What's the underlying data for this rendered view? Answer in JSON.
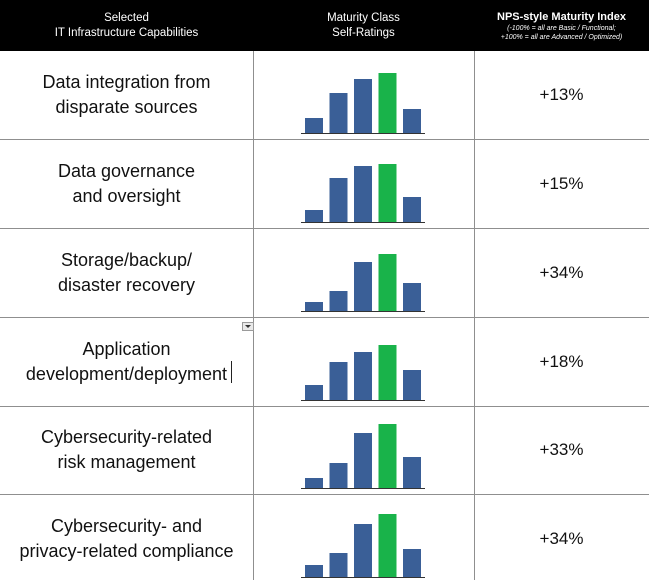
{
  "header": {
    "col1": [
      "Selected",
      "IT Infrastructure Capabilities"
    ],
    "col2": [
      "Maturity Class",
      "Self-Ratings"
    ],
    "col3_title": "NPS-style Maturity Index",
    "col3_notes": [
      "(-100% = all are Basic / Functional;",
      "+100% = all are Advanced / Optimized)"
    ]
  },
  "colors": {
    "bar_default": "#3a5f97",
    "bar_highlight": "#19b34a",
    "header_bg": "#000000",
    "grid_line": "#8f8f8f"
  },
  "chart_data": {
    "type": "bar",
    "title": "",
    "note": "Each row is a small bar chart of five maturity classes; the fourth bar is highlighted green.",
    "highlight_index": 3,
    "rows": [
      {
        "label": [
          "Data integration from",
          "disparate sources"
        ],
        "values": [
          15,
          40,
          54,
          60,
          24
        ],
        "nps": "+13%"
      },
      {
        "label": [
          "Data governance",
          "and oversight"
        ],
        "values": [
          12,
          44,
          56,
          58,
          25
        ],
        "nps": "+15%"
      },
      {
        "label": [
          "Storage/backup/",
          "disaster recovery"
        ],
        "values": [
          9,
          20,
          49,
          57,
          28
        ],
        "nps": "+34%"
      },
      {
        "label": [
          "Application",
          "development/deployment"
        ],
        "values": [
          15,
          38,
          48,
          55,
          30
        ],
        "nps": "+18%"
      },
      {
        "label": [
          "Cybersecurity-related",
          "risk management"
        ],
        "values": [
          10,
          25,
          55,
          64,
          31
        ],
        "nps": "+33%"
      },
      {
        "label": [
          "Cybersecurity- and",
          "privacy-related compliance"
        ],
        "values": [
          12,
          24,
          53,
          63,
          28
        ],
        "nps": "+34%"
      }
    ]
  }
}
